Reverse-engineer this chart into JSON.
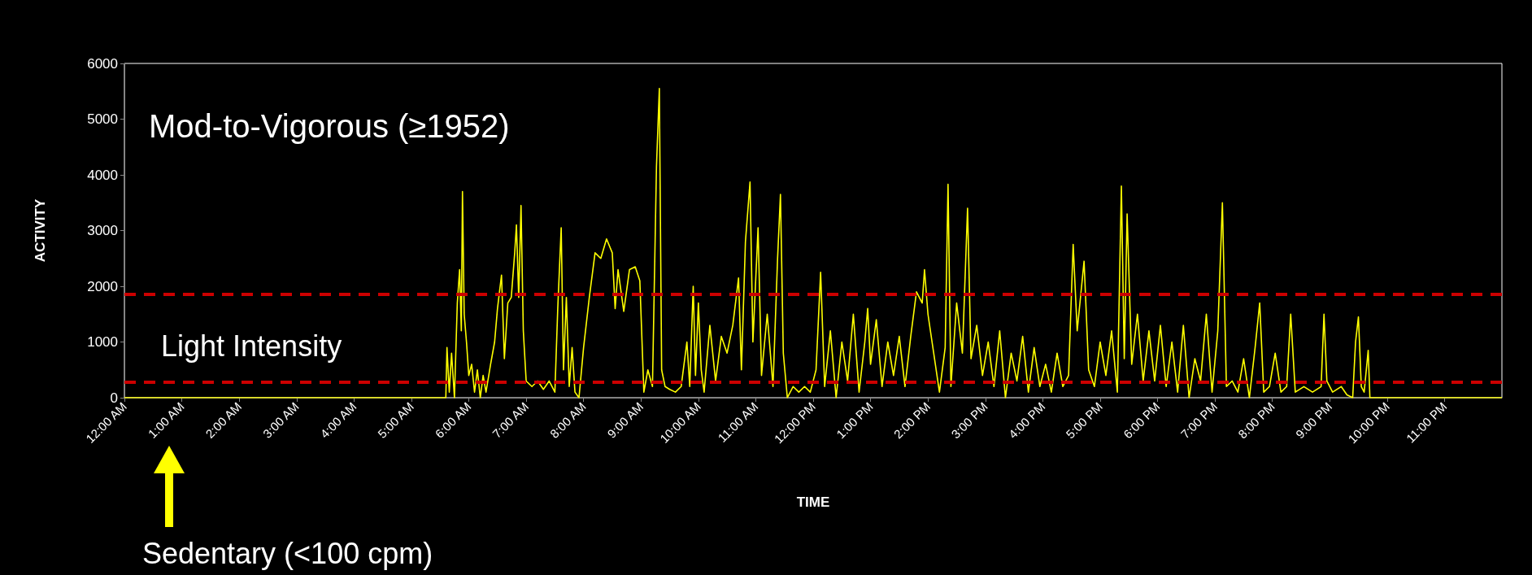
{
  "chart_data": {
    "type": "line",
    "xlabel": "TIME",
    "ylabel": "ACTIVITY",
    "annotations": [
      "Mod-to-Vigorous (≥1952)",
      "Light Intensity",
      "Sedentary (<100 cpm)"
    ],
    "xlim": [
      0,
      24
    ],
    "xticks": [
      {
        "value": 0,
        "label": "12:00 AM"
      },
      {
        "value": 1,
        "label": "1:00 AM"
      },
      {
        "value": 2,
        "label": "2:00 AM"
      },
      {
        "value": 3,
        "label": "3:00 AM"
      },
      {
        "value": 4,
        "label": "4:00 AM"
      },
      {
        "value": 5,
        "label": "5:00 AM"
      },
      {
        "value": 6,
        "label": "6:00 AM"
      },
      {
        "value": 7,
        "label": "7:00 AM"
      },
      {
        "value": 8,
        "label": "8:00 AM"
      },
      {
        "value": 9,
        "label": "9:00 AM"
      },
      {
        "value": 10,
        "label": "10:00 AM"
      },
      {
        "value": 11,
        "label": "11:00 AM"
      },
      {
        "value": 12,
        "label": "12:00 PM"
      },
      {
        "value": 13,
        "label": "1:00 PM"
      },
      {
        "value": 14,
        "label": "2:00 PM"
      },
      {
        "value": 15,
        "label": "3:00 PM"
      },
      {
        "value": 16,
        "label": "4:00 PM"
      },
      {
        "value": 17,
        "label": "5:00 PM"
      },
      {
        "value": 18,
        "label": "6:00 PM"
      },
      {
        "value": 19,
        "label": "7:00 PM"
      },
      {
        "value": 20,
        "label": "8:00 PM"
      },
      {
        "value": 21,
        "label": "9:00 PM"
      },
      {
        "value": 22,
        "label": "10:00 PM"
      },
      {
        "value": 23,
        "label": "11:00 PM"
      }
    ],
    "ylim": [
      0,
      6000
    ],
    "yticks": [
      0,
      1000,
      2000,
      3000,
      4000,
      5000,
      6000
    ],
    "grid": false,
    "marker": "none",
    "line_style": "solid",
    "ref_lines": [
      {
        "axis": "y",
        "value": 1860,
        "color": "#cc0000",
        "line_style": "dashed"
      },
      {
        "axis": "y",
        "value": 280,
        "color": "#cc0000",
        "line_style": "dashed"
      }
    ],
    "series": [
      {
        "color": "#ffff00",
        "x": [
          0,
          5.6,
          5.62,
          5.66,
          5.7,
          5.75,
          5.8,
          5.84,
          5.87,
          5.89,
          5.92,
          5.96,
          6.0,
          6.05,
          6.1,
          6.15,
          6.2,
          6.25,
          6.3,
          6.38,
          6.45,
          6.5,
          6.57,
          6.62,
          6.68,
          6.74,
          6.8,
          6.83,
          6.87,
          6.91,
          6.95,
          7.0,
          7.1,
          7.2,
          7.3,
          7.4,
          7.5,
          7.55,
          7.61,
          7.65,
          7.7,
          7.75,
          7.8,
          7.85,
          7.92,
          8.0,
          8.1,
          8.2,
          8.3,
          8.4,
          8.5,
          8.55,
          8.6,
          8.7,
          8.8,
          8.9,
          8.98,
          9.05,
          9.12,
          9.2,
          9.27,
          9.32,
          9.36,
          9.42,
          9.5,
          9.6,
          9.7,
          9.8,
          9.85,
          9.91,
          9.95,
          10.0,
          10.05,
          10.1,
          10.2,
          10.3,
          10.4,
          10.5,
          10.6,
          10.7,
          10.75,
          10.82,
          10.9,
          10.95,
          11.04,
          11.1,
          11.2,
          11.3,
          11.38,
          11.43,
          11.48,
          11.55,
          11.65,
          11.75,
          11.85,
          11.95,
          12.05,
          12.13,
          12.2,
          12.3,
          12.4,
          12.5,
          12.6,
          12.7,
          12.8,
          12.9,
          12.95,
          13.0,
          13.1,
          13.2,
          13.3,
          13.4,
          13.5,
          13.6,
          13.7,
          13.8,
          13.9,
          13.94,
          14.0,
          14.1,
          14.2,
          14.3,
          14.35,
          14.4,
          14.5,
          14.6,
          14.69,
          14.75,
          14.85,
          14.95,
          15.05,
          15.15,
          15.25,
          15.35,
          15.45,
          15.55,
          15.65,
          15.75,
          15.85,
          15.95,
          16.05,
          16.15,
          16.25,
          16.35,
          16.45,
          16.53,
          16.6,
          16.72,
          16.8,
          16.9,
          17.0,
          17.1,
          17.2,
          17.3,
          17.37,
          17.42,
          17.47,
          17.55,
          17.65,
          17.75,
          17.85,
          17.95,
          18.05,
          18.15,
          18.25,
          18.35,
          18.45,
          18.55,
          18.65,
          18.75,
          18.85,
          18.95,
          19.05,
          19.13,
          19.2,
          19.3,
          19.4,
          19.5,
          19.6,
          19.7,
          19.78,
          19.85,
          19.95,
          20.05,
          20.15,
          20.25,
          20.32,
          20.4,
          20.55,
          20.7,
          20.85,
          20.9,
          20.95,
          21.05,
          21.2,
          21.3,
          21.4,
          21.45,
          21.5,
          21.55,
          21.6,
          21.67,
          21.7,
          24
        ],
        "values": [
          0,
          0,
          900,
          100,
          800,
          0,
          1700,
          2300,
          1200,
          3700,
          1500,
          1000,
          400,
          600,
          100,
          500,
          0,
          400,
          100,
          600,
          1000,
          1600,
          2200,
          700,
          1700,
          1800,
          2600,
          3100,
          1800,
          3450,
          1200,
          300,
          200,
          300,
          150,
          300,
          100,
          1600,
          3050,
          500,
          1800,
          200,
          900,
          100,
          0,
          900,
          1800,
          2600,
          2500,
          2850,
          2600,
          1600,
          2300,
          1550,
          2300,
          2350,
          2100,
          100,
          500,
          200,
          4150,
          5550,
          500,
          200,
          150,
          100,
          200,
          1000,
          200,
          2000,
          400,
          1700,
          500,
          100,
          1300,
          300,
          1100,
          800,
          1300,
          2150,
          500,
          2800,
          3870,
          1000,
          3050,
          400,
          1500,
          200,
          2500,
          3650,
          800,
          0,
          200,
          100,
          200,
          100,
          500,
          2250,
          200,
          1200,
          0,
          1000,
          300,
          1500,
          100,
          1000,
          1600,
          600,
          1400,
          200,
          1000,
          400,
          1100,
          200,
          1100,
          1900,
          1700,
          2300,
          1500,
          800,
          100,
          900,
          3830,
          200,
          1700,
          800,
          3400,
          700,
          1300,
          400,
          1000,
          200,
          1200,
          0,
          800,
          300,
          1100,
          100,
          900,
          200,
          600,
          100,
          800,
          200,
          400,
          2750,
          1200,
          2450,
          500,
          200,
          1000,
          400,
          1200,
          100,
          3800,
          700,
          3300,
          600,
          1500,
          300,
          1200,
          300,
          1300,
          200,
          1000,
          100,
          1300,
          0,
          700,
          300,
          1500,
          100,
          1200,
          3500,
          200,
          300,
          100,
          700,
          0,
          900,
          1700,
          100,
          200,
          800,
          100,
          200,
          1500,
          100,
          200,
          100,
          200,
          1500,
          300,
          100,
          200,
          50,
          0,
          1000,
          1450,
          200,
          100,
          850,
          0,
          0
        ]
      }
    ]
  }
}
